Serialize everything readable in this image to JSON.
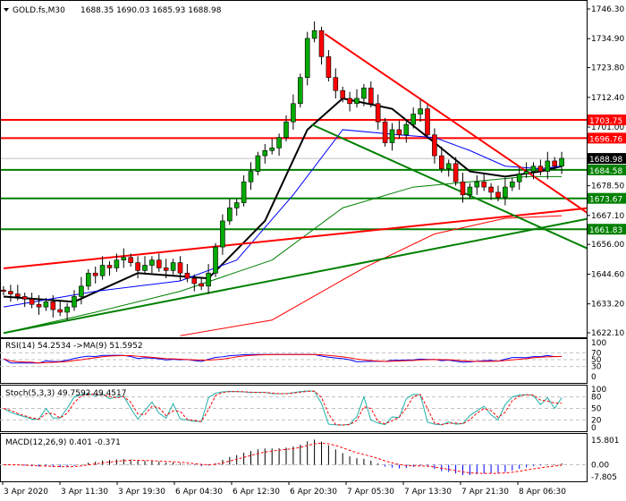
{
  "chart_data": {
    "type": "candlestick",
    "title": "GOLD.fs,M30",
    "ohlc_label": "1688.35 1690.03 1685.93 1688.98",
    "colors": {
      "up": "#00aa00",
      "down": "#ff0000",
      "resistance": "#ff0000",
      "support": "#008000",
      "ma_fast": "#000000",
      "ma_mid": "#0000ff",
      "ma_slow": "#008000",
      "ma_long": "#ff0000"
    },
    "ylim": [
      1622.1,
      1746.3
    ],
    "price_ticks": [
      "1746.30",
      "1734.90",
      "1723.80",
      "1712.40",
      "1701.00",
      "1678.50",
      "1667.10",
      "1656.00",
      "1644.60",
      "1633.20",
      "1622.10"
    ],
    "price_tick_values": [
      1746.3,
      1734.9,
      1723.8,
      1712.4,
      1701.0,
      1678.5,
      1667.1,
      1656.0,
      1644.6,
      1633.2,
      1622.1
    ],
    "time_ticks": [
      "3 Apr 2020",
      "3 Apr 11:30",
      "3 Apr 19:30",
      "6 Apr 04:30",
      "6 Apr 12:30",
      "6 Apr 20:30",
      "7 Apr 05:30",
      "7 Apr 13:30",
      "7 Apr 21:30",
      "8 Apr 06:30"
    ],
    "closes": [
      1638,
      1637,
      1636,
      1635,
      1633,
      1632,
      1634,
      1631,
      1630,
      1632,
      1636,
      1640,
      1645,
      1644,
      1648,
      1647,
      1650,
      1651,
      1649,
      1646,
      1648,
      1650,
      1647,
      1646,
      1649,
      1645,
      1643,
      1641,
      1640,
      1645,
      1655,
      1665,
      1670,
      1672,
      1680,
      1684,
      1690,
      1692,
      1693,
      1697,
      1703,
      1710,
      1720,
      1735,
      1738,
      1728,
      1720,
      1715,
      1712,
      1710,
      1712,
      1716,
      1710,
      1703,
      1695,
      1700,
      1698,
      1702,
      1706,
      1708,
      1698,
      1690,
      1685,
      1687,
      1680,
      1675,
      1678,
      1680,
      1678,
      1676,
      1674,
      1678,
      1680,
      1683,
      1684,
      1686,
      1684,
      1688,
      1686,
      1689
    ],
    "moving_averages": [
      {
        "points": [
          [
            0,
            1636
          ],
          [
            10,
            1634
          ],
          [
            19,
            1645
          ],
          [
            29,
            1643
          ],
          [
            37,
            1665
          ],
          [
            43,
            1700
          ],
          [
            48,
            1712
          ],
          [
            55,
            1708
          ],
          [
            61,
            1695
          ],
          [
            66,
            1684
          ],
          [
            71,
            1682
          ],
          [
            76,
            1684
          ],
          [
            79,
            1686
          ]
        ]
      },
      {
        "points": [
          [
            0,
            1632
          ],
          [
            13,
            1638
          ],
          [
            25,
            1642
          ],
          [
            33,
            1650
          ],
          [
            41,
            1675
          ],
          [
            48,
            1700
          ],
          [
            56,
            1698
          ],
          [
            61,
            1697
          ],
          [
            66,
            1692
          ],
          [
            71,
            1686
          ],
          [
            76,
            1685
          ],
          [
            79,
            1686
          ]
        ]
      },
      {
        "points": [
          [
            0,
            1622
          ],
          [
            13,
            1630
          ],
          [
            25,
            1638
          ],
          [
            38,
            1650
          ],
          [
            48,
            1670
          ],
          [
            58,
            1678
          ],
          [
            66,
            1680
          ],
          [
            74,
            1682
          ],
          [
            79,
            1682
          ]
        ]
      },
      {
        "points": [
          [
            25,
            1621
          ],
          [
            38,
            1627
          ],
          [
            51,
            1647
          ],
          [
            61,
            1660
          ],
          [
            71,
            1666
          ],
          [
            79,
            1667
          ]
        ]
      }
    ],
    "levels": [
      {
        "label": "1703.75",
        "value": 1703.75,
        "kind": "resistance"
      },
      {
        "label": "1696.76",
        "value": 1696.76,
        "kind": "resistance"
      },
      {
        "label": "1684.58",
        "value": 1684.58,
        "kind": "support"
      },
      {
        "label": "1673.67",
        "value": 1673.67,
        "kind": "support"
      },
      {
        "label": "1661.83",
        "value": 1661.83,
        "kind": "support"
      }
    ],
    "current_price": "1688.98",
    "trendlines": [
      {
        "kind": "resistance",
        "from": [
          0,
          1646.8
        ],
        "to": [
          83,
          1670
        ]
      },
      {
        "kind": "resistance",
        "from": [
          45.5,
          1736.7
        ],
        "to": [
          83,
          1667.4
        ]
      },
      {
        "kind": "support",
        "from": [
          0,
          1622
        ],
        "to": [
          83,
          1666
        ]
      },
      {
        "kind": "support",
        "from": [
          43.6,
          1702
        ],
        "to": [
          83,
          1654
        ]
      }
    ],
    "indicators": {
      "rsi": {
        "label": "RSI(14) 54.2534  ->MA(9) 51.5952",
        "ticks": [
          "100",
          "70",
          "50",
          "30",
          "0"
        ]
      },
      "stoch": {
        "label": "Stoch(5,3,3) 49.7592 49.4517",
        "ticks": [
          "100",
          "80",
          "50",
          "20",
          "0"
        ]
      },
      "macd": {
        "label": "MACD(12,26,9) 0.401 -0.371",
        "ticks": [
          "15.801",
          "0.00",
          "-7.805"
        ]
      }
    }
  }
}
